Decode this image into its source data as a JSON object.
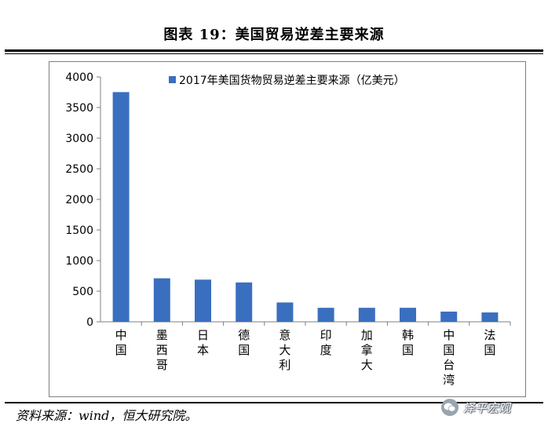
{
  "header": {
    "title": "图表 19：美国贸易逆差主要来源"
  },
  "footer": {
    "source": "资料来源：wind，恒大研究院。",
    "watermark": "泽平宏观"
  },
  "colors": {
    "bar": "#3a6fbf",
    "axis": "#7f7f7f"
  },
  "chart_data": {
    "type": "bar",
    "title": "",
    "xlabel": "",
    "ylabel": "",
    "categories": [
      "中国",
      "墨西哥",
      "日本",
      "德国",
      "意大利",
      "印度",
      "加拿大",
      "韩国",
      "中国台湾",
      "法国"
    ],
    "series": [
      {
        "name": "2017年美国货物贸易逆差主要来源（亿美元）",
        "values": [
          3752,
          711,
          689,
          643,
          316,
          229,
          229,
          229,
          167,
          153
        ]
      }
    ],
    "ylim": [
      0,
      4000
    ],
    "yticks": [
      "0",
      "500",
      "1000",
      "1500",
      "2000",
      "2500",
      "3000",
      "3500",
      "4000"
    ],
    "grid": false,
    "legend_position": "top"
  }
}
